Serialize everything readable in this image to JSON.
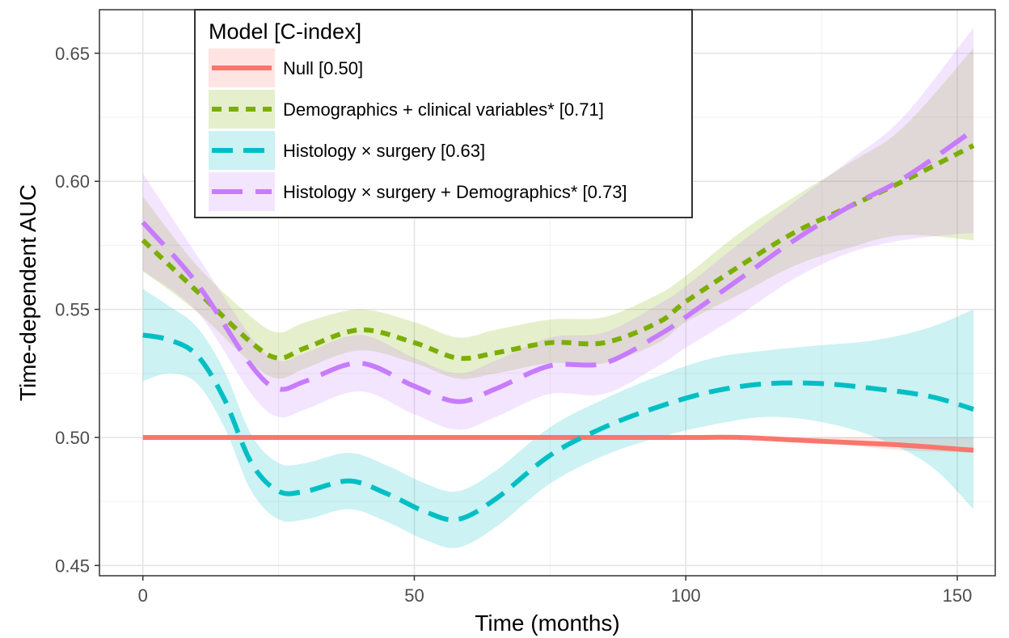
{
  "chart_data": {
    "type": "line",
    "xlabel": "Time (months)",
    "ylabel": "Time-dependent AUC",
    "xlim": [
      -8,
      157
    ],
    "ylim": [
      0.446,
      0.667
    ],
    "x_ticks": [
      0,
      50,
      100,
      150
    ],
    "y_ticks": [
      0.45,
      0.5,
      0.55,
      0.6,
      0.65
    ],
    "x_tick_labels": [
      "0",
      "50",
      "100",
      "150"
    ],
    "y_tick_labels": [
      "0.45",
      "0.50",
      "0.55",
      "0.60",
      "0.65"
    ],
    "grid": true,
    "legend": {
      "title": "Model [C-index]",
      "placement": "top-left"
    },
    "series": [
      {
        "name": "Null [0.50]",
        "color": "#f8766d",
        "dash": "solid",
        "x": [
          0,
          20,
          40,
          60,
          80,
          100,
          110,
          120,
          130,
          140,
          153
        ],
        "y": [
          0.5,
          0.5,
          0.5,
          0.5,
          0.5,
          0.5,
          0.5,
          0.499,
          0.498,
          0.497,
          0.495
        ],
        "ci_upper": [
          0.5,
          0.5,
          0.5,
          0.5,
          0.5,
          0.5,
          0.5,
          0.5,
          0.5,
          0.5,
          0.5
        ],
        "ci_lower": [
          0.5,
          0.5,
          0.5,
          0.5,
          0.5,
          0.5,
          0.5,
          0.499,
          0.497,
          0.495,
          0.494
        ]
      },
      {
        "name": "Demographics + clinical variables* [0.71]",
        "color": "#7cae00",
        "dash": "dotted",
        "x": [
          0,
          10,
          20,
          25,
          30,
          40,
          50,
          58,
          65,
          75,
          85,
          95,
          100,
          110,
          120,
          130,
          140,
          153
        ],
        "y": [
          0.577,
          0.557,
          0.537,
          0.531,
          0.535,
          0.542,
          0.537,
          0.531,
          0.533,
          0.537,
          0.537,
          0.545,
          0.553,
          0.567,
          0.58,
          0.59,
          0.6,
          0.614
        ],
        "ci_upper": [
          0.594,
          0.567,
          0.547,
          0.541,
          0.545,
          0.55,
          0.545,
          0.539,
          0.542,
          0.546,
          0.547,
          0.556,
          0.563,
          0.58,
          0.594,
          0.607,
          0.621,
          0.652
        ],
        "ci_lower": [
          0.565,
          0.549,
          0.529,
          0.523,
          0.527,
          0.534,
          0.529,
          0.523,
          0.525,
          0.529,
          0.529,
          0.537,
          0.545,
          0.556,
          0.567,
          0.574,
          0.579,
          0.577
        ]
      },
      {
        "name": "Histology × surgery [0.63]",
        "color": "#00bfc4",
        "dash": "dashed",
        "x": [
          0,
          5,
          10,
          15,
          20,
          25,
          30,
          38,
          45,
          52,
          58,
          65,
          75,
          85,
          95,
          105,
          115,
          125,
          135,
          145,
          153
        ],
        "y": [
          0.54,
          0.538,
          0.532,
          0.515,
          0.49,
          0.479,
          0.479,
          0.483,
          0.478,
          0.471,
          0.468,
          0.476,
          0.493,
          0.504,
          0.512,
          0.518,
          0.521,
          0.521,
          0.519,
          0.516,
          0.511
        ],
        "ci_upper": [
          0.558,
          0.551,
          0.543,
          0.526,
          0.501,
          0.49,
          0.49,
          0.494,
          0.489,
          0.482,
          0.479,
          0.487,
          0.504,
          0.515,
          0.524,
          0.531,
          0.534,
          0.536,
          0.538,
          0.543,
          0.55
        ],
        "ci_lower": [
          0.522,
          0.525,
          0.521,
          0.504,
          0.479,
          0.468,
          0.468,
          0.472,
          0.467,
          0.46,
          0.457,
          0.465,
          0.482,
          0.493,
          0.5,
          0.505,
          0.508,
          0.506,
          0.5,
          0.489,
          0.472
        ]
      },
      {
        "name": "Histology × surgery + Demographics* [0.73]",
        "color": "#c77cff",
        "dash": "longdash",
        "x": [
          0,
          10,
          20,
          25,
          30,
          40,
          50,
          58,
          65,
          75,
          85,
          95,
          100,
          110,
          120,
          130,
          140,
          153
        ],
        "y": [
          0.584,
          0.56,
          0.528,
          0.519,
          0.522,
          0.529,
          0.52,
          0.514,
          0.519,
          0.528,
          0.529,
          0.54,
          0.547,
          0.562,
          0.577,
          0.59,
          0.601,
          0.62
        ],
        "ci_upper": [
          0.603,
          0.571,
          0.539,
          0.53,
          0.533,
          0.54,
          0.531,
          0.525,
          0.53,
          0.539,
          0.541,
          0.552,
          0.559,
          0.576,
          0.592,
          0.608,
          0.625,
          0.66
        ],
        "ci_lower": [
          0.565,
          0.549,
          0.517,
          0.508,
          0.511,
          0.518,
          0.509,
          0.503,
          0.508,
          0.517,
          0.517,
          0.528,
          0.535,
          0.548,
          0.562,
          0.572,
          0.577,
          0.58
        ]
      }
    ]
  }
}
